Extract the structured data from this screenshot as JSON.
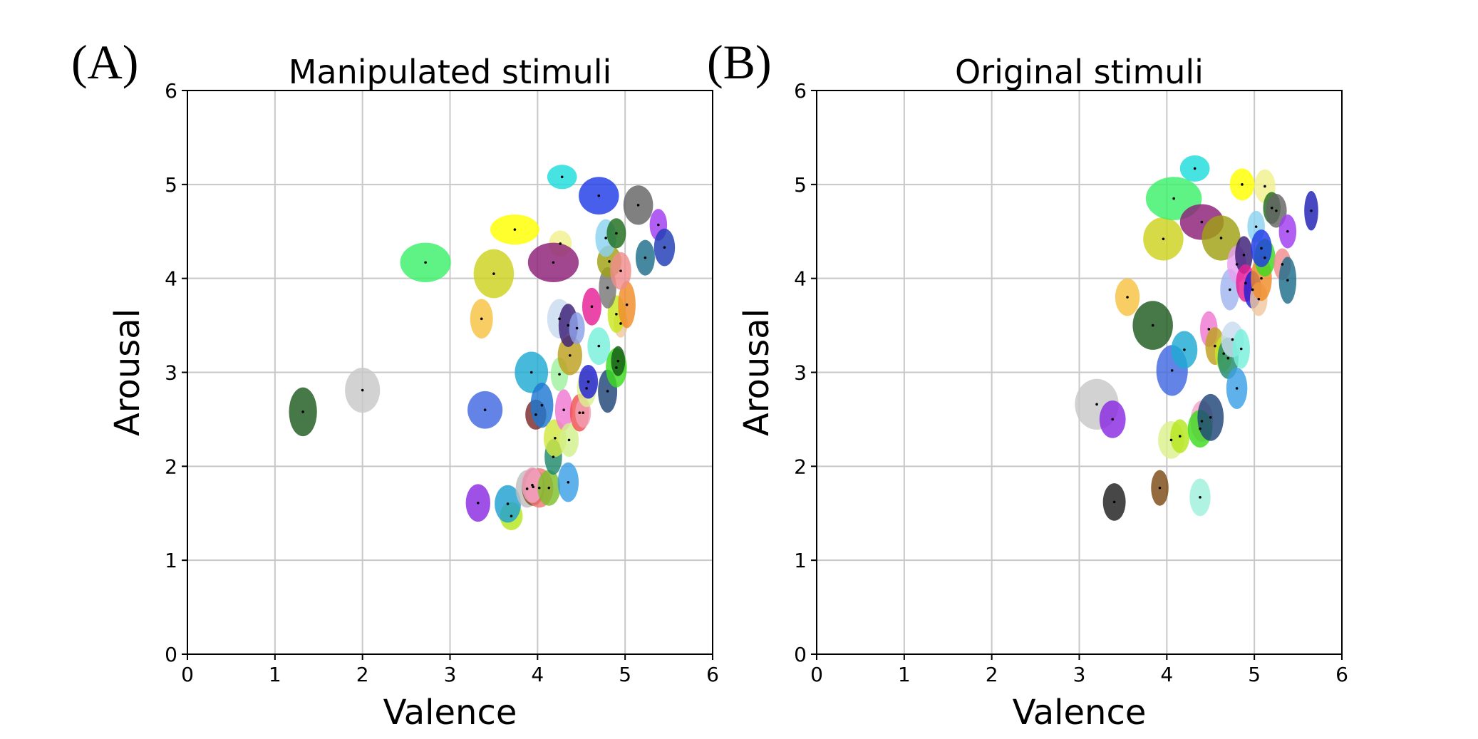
{
  "chart_data": [
    {
      "type": "scatter",
      "panel_label": "(A)",
      "title": "Manipulated stimuli",
      "xlabel": "Valence",
      "ylabel": "Arousal",
      "xlim": [
        0,
        6
      ],
      "ylim": [
        0,
        6
      ],
      "xticks": [
        "0",
        "1",
        "2",
        "3",
        "4",
        "5",
        "6"
      ],
      "yticks": [
        "0",
        "1",
        "2",
        "3",
        "4",
        "5",
        "6"
      ],
      "grid": true,
      "points": [
        {
          "x": 1.32,
          "y": 2.58,
          "sx": 0.16,
          "sy": 0.26,
          "color": "#1f5a1f"
        },
        {
          "x": 2.0,
          "y": 2.81,
          "sx": 0.2,
          "sy": 0.24,
          "color": "#c8c8c8"
        },
        {
          "x": 2.72,
          "y": 4.17,
          "sx": 0.29,
          "sy": 0.21,
          "color": "#3cf06a"
        },
        {
          "x": 3.32,
          "y": 1.61,
          "sx": 0.14,
          "sy": 0.2,
          "color": "#8a2be2"
        },
        {
          "x": 3.36,
          "y": 3.57,
          "sx": 0.13,
          "sy": 0.21,
          "color": "#f5c242"
        },
        {
          "x": 3.4,
          "y": 2.6,
          "sx": 0.2,
          "sy": 0.2,
          "color": "#4169e1"
        },
        {
          "x": 3.5,
          "y": 4.05,
          "sx": 0.23,
          "sy": 0.26,
          "color": "#cdd21e"
        },
        {
          "x": 3.7,
          "y": 1.47,
          "sx": 0.13,
          "sy": 0.15,
          "color": "#b4e61e"
        },
        {
          "x": 3.66,
          "y": 1.6,
          "sx": 0.15,
          "sy": 0.2,
          "color": "#1ea0d2"
        },
        {
          "x": 3.74,
          "y": 4.52,
          "sx": 0.28,
          "sy": 0.16,
          "color": "#ffff00"
        },
        {
          "x": 3.88,
          "y": 1.76,
          "sx": 0.13,
          "sy": 0.2,
          "color": "#bebebe"
        },
        {
          "x": 3.95,
          "y": 1.78,
          "sx": 0.13,
          "sy": 0.2,
          "color": "#7b4a14"
        },
        {
          "x": 4.02,
          "y": 1.77,
          "sx": 0.16,
          "sy": 0.21,
          "color": "#f07878"
        },
        {
          "x": 3.94,
          "y": 1.8,
          "sx": 0.12,
          "sy": 0.19,
          "color": "#f5a5c8"
        },
        {
          "x": 4.13,
          "y": 1.77,
          "sx": 0.13,
          "sy": 0.19,
          "color": "#7cc02a"
        },
        {
          "x": 4.35,
          "y": 1.83,
          "sx": 0.12,
          "sy": 0.21,
          "color": "#3ca0e6"
        },
        {
          "x": 4.18,
          "y": 2.1,
          "sx": 0.1,
          "sy": 0.19,
          "color": "#1e8a6e"
        },
        {
          "x": 3.98,
          "y": 2.55,
          "sx": 0.12,
          "sy": 0.16,
          "color": "#7a2a2a"
        },
        {
          "x": 3.93,
          "y": 3.0,
          "sx": 0.19,
          "sy": 0.22,
          "color": "#1eaad2"
        },
        {
          "x": 4.05,
          "y": 2.65,
          "sx": 0.13,
          "sy": 0.24,
          "color": "#1e78d2"
        },
        {
          "x": 4.2,
          "y": 2.3,
          "sx": 0.13,
          "sy": 0.2,
          "color": "#d2e642"
        },
        {
          "x": 4.3,
          "y": 2.6,
          "sx": 0.1,
          "sy": 0.22,
          "color": "#f078d2"
        },
        {
          "x": 4.36,
          "y": 2.28,
          "sx": 0.11,
          "sy": 0.18,
          "color": "#d2f08c"
        },
        {
          "x": 4.25,
          "y": 2.98,
          "sx": 0.1,
          "sy": 0.18,
          "color": "#a0f0a0"
        },
        {
          "x": 4.37,
          "y": 3.18,
          "sx": 0.14,
          "sy": 0.21,
          "color": "#bea01e"
        },
        {
          "x": 4.25,
          "y": 3.57,
          "sx": 0.14,
          "sy": 0.21,
          "color": "#c8dcf0"
        },
        {
          "x": 4.35,
          "y": 3.5,
          "sx": 0.11,
          "sy": 0.23,
          "color": "#3c1e78"
        },
        {
          "x": 4.45,
          "y": 3.47,
          "sx": 0.09,
          "sy": 0.17,
          "color": "#8ca0e6"
        },
        {
          "x": 4.48,
          "y": 2.57,
          "sx": 0.11,
          "sy": 0.2,
          "color": "#f05050"
        },
        {
          "x": 4.52,
          "y": 2.57,
          "sx": 0.09,
          "sy": 0.16,
          "color": "#f0a0b4"
        },
        {
          "x": 4.56,
          "y": 2.83,
          "sx": 0.11,
          "sy": 0.2,
          "color": "#dcf08c"
        },
        {
          "x": 4.58,
          "y": 2.9,
          "sx": 0.11,
          "sy": 0.18,
          "color": "#1e1ed2"
        },
        {
          "x": 4.62,
          "y": 3.7,
          "sx": 0.11,
          "sy": 0.2,
          "color": "#e61e96"
        },
        {
          "x": 4.7,
          "y": 3.28,
          "sx": 0.13,
          "sy": 0.2,
          "color": "#78f0dc"
        },
        {
          "x": 4.8,
          "y": 2.8,
          "sx": 0.11,
          "sy": 0.23,
          "color": "#1e4678"
        },
        {
          "x": 4.9,
          "y": 3.05,
          "sx": 0.12,
          "sy": 0.21,
          "color": "#3cdc1e"
        },
        {
          "x": 4.92,
          "y": 3.12,
          "sx": 0.08,
          "sy": 0.16,
          "color": "#145a14"
        },
        {
          "x": 4.95,
          "y": 3.52,
          "sx": 0.08,
          "sy": 0.15,
          "color": "#f0c8a0"
        },
        {
          "x": 4.9,
          "y": 3.62,
          "sx": 0.1,
          "sy": 0.2,
          "color": "#c8e61e"
        },
        {
          "x": 5.02,
          "y": 3.72,
          "sx": 0.1,
          "sy": 0.25,
          "color": "#f08c28"
        },
        {
          "x": 4.8,
          "y": 3.9,
          "sx": 0.1,
          "sy": 0.22,
          "color": "#787878"
        },
        {
          "x": 4.82,
          "y": 4.18,
          "sx": 0.14,
          "sy": 0.17,
          "color": "#a0a014"
        },
        {
          "x": 4.95,
          "y": 4.08,
          "sx": 0.12,
          "sy": 0.2,
          "color": "#f08c8c"
        },
        {
          "x": 4.78,
          "y": 4.43,
          "sx": 0.12,
          "sy": 0.2,
          "color": "#8cd2f0"
        },
        {
          "x": 4.9,
          "y": 4.48,
          "sx": 0.11,
          "sy": 0.16,
          "color": "#1e6e1e"
        },
        {
          "x": 4.7,
          "y": 4.88,
          "sx": 0.23,
          "sy": 0.2,
          "color": "#1e3ce6"
        },
        {
          "x": 4.28,
          "y": 5.08,
          "sx": 0.17,
          "sy": 0.13,
          "color": "#1edcdc"
        },
        {
          "x": 4.26,
          "y": 4.37,
          "sx": 0.13,
          "sy": 0.14,
          "color": "#f0f08c"
        },
        {
          "x": 4.18,
          "y": 4.17,
          "sx": 0.29,
          "sy": 0.21,
          "color": "#8c1e78"
        },
        {
          "x": 5.15,
          "y": 4.78,
          "sx": 0.17,
          "sy": 0.21,
          "color": "#646464"
        },
        {
          "x": 5.38,
          "y": 4.57,
          "sx": 0.1,
          "sy": 0.17,
          "color": "#a03cf0"
        },
        {
          "x": 5.45,
          "y": 4.33,
          "sx": 0.12,
          "sy": 0.2,
          "color": "#1e3cb4"
        },
        {
          "x": 5.23,
          "y": 4.22,
          "sx": 0.11,
          "sy": 0.19,
          "color": "#1e6e8c"
        }
      ]
    },
    {
      "type": "scatter",
      "panel_label": "(B)",
      "title": "Original stimuli",
      "xlabel": "Valence",
      "ylabel": "Arousal",
      "xlim": [
        0,
        6
      ],
      "ylim": [
        0,
        6
      ],
      "xticks": [
        "0",
        "1",
        "2",
        "3",
        "4",
        "5",
        "6"
      ],
      "yticks": [
        "0",
        "1",
        "2",
        "3",
        "4",
        "5",
        "6"
      ],
      "grid": true,
      "points": [
        {
          "x": 3.2,
          "y": 2.66,
          "sx": 0.25,
          "sy": 0.27,
          "color": "#c8c8c8"
        },
        {
          "x": 3.38,
          "y": 2.5,
          "sx": 0.15,
          "sy": 0.2,
          "color": "#8a2be2"
        },
        {
          "x": 3.4,
          "y": 1.62,
          "sx": 0.13,
          "sy": 0.2,
          "color": "#1e1e1e"
        },
        {
          "x": 3.55,
          "y": 3.8,
          "sx": 0.14,
          "sy": 0.2,
          "color": "#f5c242"
        },
        {
          "x": 3.84,
          "y": 3.5,
          "sx": 0.23,
          "sy": 0.26,
          "color": "#1f5a1f"
        },
        {
          "x": 3.92,
          "y": 1.77,
          "sx": 0.1,
          "sy": 0.19,
          "color": "#7b4a14"
        },
        {
          "x": 3.96,
          "y": 4.42,
          "sx": 0.23,
          "sy": 0.23,
          "color": "#cdd21e"
        },
        {
          "x": 4.08,
          "y": 4.85,
          "sx": 0.32,
          "sy": 0.23,
          "color": "#3cf06a"
        },
        {
          "x": 4.06,
          "y": 3.02,
          "sx": 0.18,
          "sy": 0.27,
          "color": "#4169e1"
        },
        {
          "x": 4.2,
          "y": 3.24,
          "sx": 0.15,
          "sy": 0.2,
          "color": "#1eaad2"
        },
        {
          "x": 4.05,
          "y": 2.28,
          "sx": 0.15,
          "sy": 0.2,
          "color": "#dcf08c"
        },
        {
          "x": 4.15,
          "y": 2.32,
          "sx": 0.11,
          "sy": 0.18,
          "color": "#b4e61e"
        },
        {
          "x": 4.38,
          "y": 1.67,
          "sx": 0.12,
          "sy": 0.2,
          "color": "#a0f0dc"
        },
        {
          "x": 4.32,
          "y": 5.17,
          "sx": 0.17,
          "sy": 0.14,
          "color": "#1edcdc"
        },
        {
          "x": 4.4,
          "y": 4.6,
          "sx": 0.25,
          "sy": 0.19,
          "color": "#8c1e78"
        },
        {
          "x": 4.62,
          "y": 4.43,
          "sx": 0.22,
          "sy": 0.24,
          "color": "#a0a014"
        },
        {
          "x": 4.48,
          "y": 3.46,
          "sx": 0.1,
          "sy": 0.19,
          "color": "#f078d2"
        },
        {
          "x": 4.4,
          "y": 2.48,
          "sx": 0.13,
          "sy": 0.22,
          "color": "#f5a5c8"
        },
        {
          "x": 4.38,
          "y": 2.4,
          "sx": 0.14,
          "sy": 0.2,
          "color": "#3cdc1e"
        },
        {
          "x": 4.5,
          "y": 2.52,
          "sx": 0.15,
          "sy": 0.25,
          "color": "#1e4678"
        },
        {
          "x": 4.55,
          "y": 3.28,
          "sx": 0.11,
          "sy": 0.2,
          "color": "#bea01e"
        },
        {
          "x": 4.65,
          "y": 3.2,
          "sx": 0.1,
          "sy": 0.19,
          "color": "#c8e61e"
        },
        {
          "x": 4.7,
          "y": 3.15,
          "sx": 0.12,
          "sy": 0.22,
          "color": "#1e8a6e"
        },
        {
          "x": 4.75,
          "y": 3.35,
          "sx": 0.13,
          "sy": 0.19,
          "color": "#c8dcf0"
        },
        {
          "x": 4.85,
          "y": 3.25,
          "sx": 0.1,
          "sy": 0.21,
          "color": "#78f0dc"
        },
        {
          "x": 4.8,
          "y": 2.83,
          "sx": 0.12,
          "sy": 0.22,
          "color": "#3ca0e6"
        },
        {
          "x": 4.72,
          "y": 3.88,
          "sx": 0.11,
          "sy": 0.22,
          "color": "#a0b4f0"
        },
        {
          "x": 4.8,
          "y": 4.15,
          "sx": 0.11,
          "sy": 0.2,
          "color": "#e6a0f0"
        },
        {
          "x": 4.88,
          "y": 4.25,
          "sx": 0.1,
          "sy": 0.2,
          "color": "#3c1e78"
        },
        {
          "x": 4.9,
          "y": 3.95,
          "sx": 0.11,
          "sy": 0.2,
          "color": "#e61e96"
        },
        {
          "x": 4.98,
          "y": 3.88,
          "sx": 0.1,
          "sy": 0.2,
          "color": "#1e1ed2"
        },
        {
          "x": 5.05,
          "y": 3.78,
          "sx": 0.1,
          "sy": 0.18,
          "color": "#f0c8a0"
        },
        {
          "x": 5.08,
          "y": 4.0,
          "sx": 0.12,
          "sy": 0.24,
          "color": "#f08c28"
        },
        {
          "x": 5.12,
          "y": 4.22,
          "sx": 0.12,
          "sy": 0.2,
          "color": "#3cdc1e"
        },
        {
          "x": 5.02,
          "y": 4.55,
          "sx": 0.1,
          "sy": 0.17,
          "color": "#8cd2f0"
        },
        {
          "x": 5.08,
          "y": 4.32,
          "sx": 0.12,
          "sy": 0.2,
          "color": "#1e3ce6"
        },
        {
          "x": 4.86,
          "y": 5.0,
          "sx": 0.14,
          "sy": 0.17,
          "color": "#ffff00"
        },
        {
          "x": 5.12,
          "y": 4.98,
          "sx": 0.12,
          "sy": 0.18,
          "color": "#f0f08c"
        },
        {
          "x": 5.2,
          "y": 4.75,
          "sx": 0.1,
          "sy": 0.17,
          "color": "#1e6e1e"
        },
        {
          "x": 5.25,
          "y": 4.72,
          "sx": 0.12,
          "sy": 0.18,
          "color": "#646464"
        },
        {
          "x": 5.38,
          "y": 4.5,
          "sx": 0.1,
          "sy": 0.18,
          "color": "#a03cf0"
        },
        {
          "x": 5.32,
          "y": 4.15,
          "sx": 0.1,
          "sy": 0.17,
          "color": "#f08c8c"
        },
        {
          "x": 5.38,
          "y": 3.98,
          "sx": 0.1,
          "sy": 0.25,
          "color": "#1e6e8c"
        },
        {
          "x": 5.65,
          "y": 4.72,
          "sx": 0.08,
          "sy": 0.21,
          "color": "#1e1eb4"
        }
      ]
    }
  ]
}
